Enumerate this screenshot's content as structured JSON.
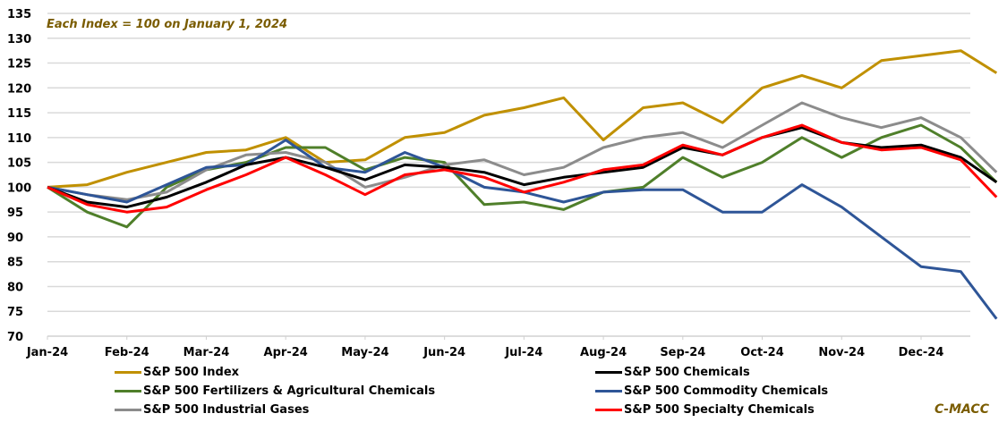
{
  "chart_data": {
    "type": "line",
    "title": "",
    "annotation": "Each Index = 100 on January 1, 2024",
    "source": "C-MACC",
    "xlabel": "",
    "ylabel": "",
    "ylim": [
      70,
      135
    ],
    "yticks": [
      70,
      75,
      80,
      85,
      90,
      95,
      100,
      105,
      110,
      115,
      120,
      125,
      130,
      135
    ],
    "grid": true,
    "legend_position": "bottom",
    "x_tick_labels": [
      "Jan-24",
      "Feb-24",
      "Mar-24",
      "Apr-24",
      "May-24",
      "Jun-24",
      "Jul-24",
      "Aug-24",
      "Sep-24",
      "Oct-24",
      "Nov-24",
      "Dec-24"
    ],
    "x": [
      0,
      0.5,
      1,
      1.5,
      2,
      2.5,
      3,
      3.5,
      4,
      4.5,
      5,
      5.5,
      6,
      6.5,
      7,
      7.5,
      8,
      8.5,
      9,
      9.5,
      10,
      10.5,
      11,
      11.5,
      11.95
    ],
    "series": [
      {
        "name": "S&P 500 Index",
        "color": "#C09000",
        "values": [
          100,
          100.5,
          103,
          105,
          107,
          107.5,
          110,
          105,
          105.5,
          110,
          111,
          114.5,
          116,
          118,
          109.5,
          116,
          117,
          113,
          120,
          122.5,
          120,
          125.5,
          126.5,
          127.5,
          123
        ]
      },
      {
        "name": "S&P 500 Chemicals",
        "color": "#000000",
        "values": [
          100,
          97,
          96,
          98,
          101,
          104.5,
          106,
          104,
          101.5,
          104.5,
          104,
          103,
          100.5,
          102,
          103,
          104,
          108,
          106.5,
          110,
          112,
          109,
          108,
          108.5,
          106,
          101
        ]
      },
      {
        "name": "S&P 500 Fertilizers & Agricultural Chemicals",
        "color": "#4F7F2A",
        "values": [
          100,
          95,
          92,
          100,
          103.5,
          105,
          108,
          108,
          103.5,
          106,
          105,
          96.5,
          97,
          95.5,
          99,
          100,
          106,
          102,
          105,
          110,
          106,
          110,
          112.5,
          108,
          101
        ]
      },
      {
        "name": "S&P 500 Commodity Chemicals",
        "color": "#2E5597",
        "values": [
          100,
          98.5,
          97,
          100.5,
          104,
          104.5,
          109.5,
          104,
          103,
          107,
          104,
          100,
          99,
          97,
          99,
          99.5,
          99.5,
          95,
          95,
          100.5,
          96,
          90,
          84,
          83,
          73.5
        ]
      },
      {
        "name": "S&P 500 Industrial Gases",
        "color": "#8C8C8C",
        "values": [
          100,
          98.5,
          97.5,
          99,
          103.5,
          106.5,
          107,
          105,
          100,
          102,
          104.5,
          105.5,
          102.5,
          104,
          108,
          110,
          111,
          108,
          112.5,
          117,
          114,
          112,
          114,
          110,
          103
        ]
      },
      {
        "name": "S&P 500 Specialty Chemicals",
        "color": "#FF0000",
        "values": [
          100,
          96.5,
          95,
          96,
          99.5,
          102.5,
          106,
          102.5,
          98.5,
          102.5,
          103.5,
          102,
          99,
          101,
          103.5,
          104.5,
          108.5,
          106.5,
          110,
          112.5,
          109,
          107.5,
          108,
          105.5,
          98
        ]
      }
    ]
  },
  "legend": {
    "items": [
      {
        "label": "S&P 500 Index",
        "color": "#C09000"
      },
      {
        "label": "S&P 500 Chemicals",
        "color": "#000000"
      },
      {
        "label": "S&P 500 Fertilizers & Agricultural Chemicals",
        "color": "#4F7F2A"
      },
      {
        "label": "S&P 500 Commodity Chemicals",
        "color": "#2E5597"
      },
      {
        "label": "S&P 500 Industrial Gases",
        "color": "#8C8C8C"
      },
      {
        "label": "S&P 500 Specialty Chemicals",
        "color": "#FF0000"
      }
    ]
  }
}
